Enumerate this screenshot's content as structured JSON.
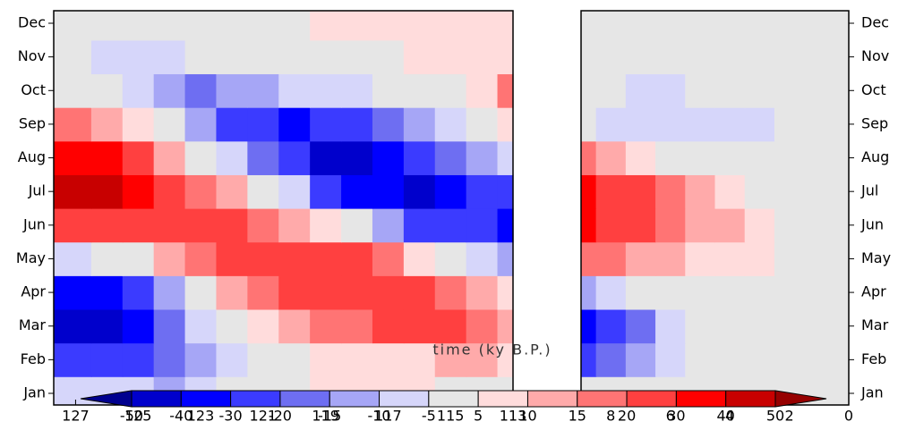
{
  "chart_data": [
    {
      "type": "contour",
      "xlabel": "time (ky B.P.)",
      "x": [
        127,
        126,
        125,
        124,
        123,
        122,
        121,
        120,
        119,
        118,
        117,
        116,
        115,
        114,
        113
      ],
      "xlim": [
        127.7,
        113
      ],
      "xticks": [
        127,
        125,
        123,
        121,
        119,
        117,
        115,
        113
      ],
      "categories": [
        "Jan",
        "Feb",
        "Mar",
        "Apr",
        "May",
        "Jun",
        "Jul",
        "Aug",
        "Sep",
        "Oct",
        "Nov",
        "Dec"
      ],
      "z": [
        [
          -8,
          -8,
          -10,
          -12,
          -8,
          -3,
          0,
          3,
          5,
          6,
          6,
          5,
          4,
          3,
          3
        ],
        [
          -30,
          -30,
          -25,
          -20,
          -12,
          -6,
          -2,
          3,
          6,
          8,
          8,
          8,
          10,
          10,
          8
        ],
        [
          -45,
          -42,
          -35,
          -20,
          -10,
          -2,
          5,
          10,
          15,
          18,
          20,
          22,
          20,
          15,
          12
        ],
        [
          -35,
          -32,
          -25,
          -12,
          0,
          10,
          15,
          20,
          22,
          25,
          25,
          22,
          18,
          12,
          6
        ],
        [
          -8,
          -5,
          0,
          10,
          18,
          22,
          25,
          25,
          25,
          20,
          15,
          8,
          0,
          -8,
          -15
        ],
        [
          25,
          25,
          25,
          25,
          25,
          22,
          18,
          12,
          5,
          -5,
          -15,
          -22,
          -28,
          -30,
          -32
        ],
        [
          45,
          42,
          35,
          28,
          18,
          10,
          0,
          -10,
          -22,
          -32,
          -40,
          -42,
          -35,
          -28,
          -22
        ],
        [
          38,
          32,
          22,
          12,
          2,
          -10,
          -20,
          -30,
          -42,
          -45,
          -40,
          -30,
          -20,
          -12,
          -8
        ],
        [
          18,
          12,
          5,
          -5,
          -15,
          -25,
          -30,
          -32,
          -30,
          -25,
          -18,
          -12,
          -8,
          -5,
          8
        ],
        [
          3,
          0,
          -10,
          -15,
          -18,
          -15,
          -12,
          -10,
          -8,
          -6,
          -4,
          -2,
          2,
          8,
          15
        ],
        [
          -5,
          -6,
          -8,
          -6,
          -4,
          -3,
          -2,
          -2,
          0,
          2,
          4,
          6,
          6,
          6,
          6
        ],
        [
          0,
          0,
          0,
          0,
          0,
          -2,
          -2,
          0,
          5,
          6,
          6,
          6,
          6,
          6,
          6
        ]
      ]
    },
    {
      "type": "contour",
      "x": [
        9,
        8,
        7,
        6,
        5,
        4,
        3,
        2,
        1,
        0
      ],
      "xlim": [
        9,
        0
      ],
      "xticks": [
        8,
        6,
        4,
        2,
        0
      ],
      "categories": [
        "Jan",
        "Feb",
        "Mar",
        "Apr",
        "May",
        "Jun",
        "Jul",
        "Aug",
        "Sep",
        "Oct",
        "Nov",
        "Dec"
      ],
      "z": [
        [
          -5,
          -3,
          -2,
          0,
          0,
          0,
          0,
          0,
          0,
          0
        ],
        [
          -25,
          -20,
          -12,
          -8,
          -3,
          0,
          0,
          0,
          0,
          0
        ],
        [
          -35,
          -28,
          -18,
          -10,
          -5,
          0,
          0,
          0,
          0,
          0
        ],
        [
          -15,
          -10,
          -5,
          -2,
          0,
          0,
          0,
          0,
          0,
          0
        ],
        [
          15,
          15,
          14,
          12,
          9,
          7,
          5,
          2,
          0,
          0
        ],
        [
          30,
          28,
          22,
          17,
          14,
          10,
          7,
          4,
          0,
          0
        ],
        [
          32,
          28,
          20,
          15,
          10,
          6,
          3,
          0,
          0,
          0
        ],
        [
          15,
          12,
          8,
          4,
          2,
          0,
          0,
          0,
          0,
          0
        ],
        [
          -5,
          -6,
          -7,
          -8,
          -10,
          -8,
          -6,
          -3,
          0,
          0
        ],
        [
          -3,
          -5,
          -6,
          -6,
          -5,
          -3,
          -2,
          0,
          0,
          0
        ],
        [
          0,
          0,
          0,
          0,
          0,
          0,
          0,
          0,
          0,
          0
        ],
        [
          0,
          0,
          0,
          0,
          0,
          0,
          0,
          0,
          0,
          0
        ]
      ]
    },
    {
      "type": "colorbar",
      "levels": [
        -50,
        -40,
        -30,
        -20,
        -15,
        -10,
        -5,
        5,
        10,
        15,
        20,
        30,
        40,
        50
      ],
      "colors": [
        "#00008f",
        "#0000cc",
        "#0000ff",
        "#3b3bff",
        "#6e6ef2",
        "#a6a6f6",
        "#d6d6fa",
        "#e6e6e6",
        "#ffdcdc",
        "#ffaaaa",
        "#ff7474",
        "#ff4040",
        "#ff0000",
        "#c80000",
        "#960000"
      ]
    }
  ]
}
